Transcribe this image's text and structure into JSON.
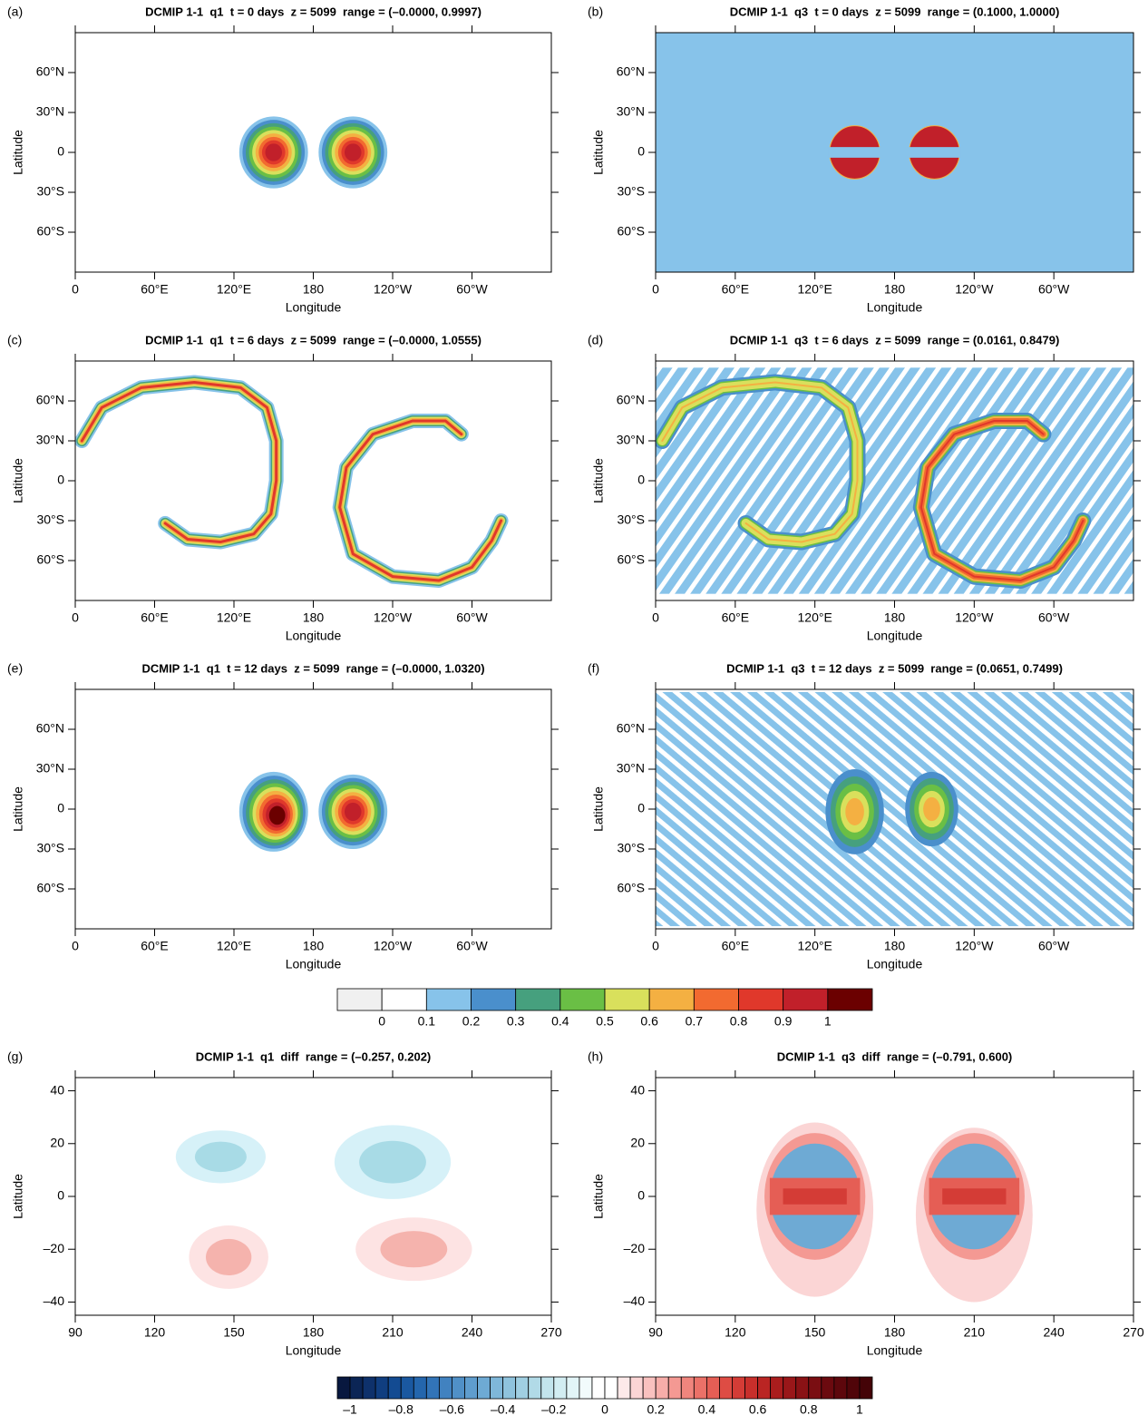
{
  "chart_data": [
    {
      "type": "contour",
      "panel_label": "(a)",
      "title": "DCMIP 1-1  q1  t = 0 days  z = 5099  range = (–0.0000, 0.9997)",
      "xlabel": "Longitude",
      "ylabel": "Latitude",
      "xlim": [
        0,
        360
      ],
      "ylim": [
        -90,
        90
      ],
      "xticks": [
        0,
        {
          "value": 60,
          "label": "60°E"
        },
        {
          "value": 120,
          "label": "120°E"
        },
        180,
        {
          "value": 240,
          "label": "120°W"
        },
        {
          "value": 300,
          "label": "60°W"
        }
      ],
      "yticks": [
        {
          "value": -60,
          "label": "60°S"
        },
        {
          "value": -30,
          "label": "30°S"
        },
        0,
        {
          "value": 30,
          "label": "30°N"
        },
        {
          "value": 60,
          "label": "60°N"
        }
      ]
    },
    {
      "type": "contour",
      "panel_label": "(b)",
      "title": "DCMIP 1-1  q3  t = 0 days  z = 5099  range = (0.1000, 1.0000)",
      "xlabel": "Longitude",
      "ylabel": "Latitude",
      "xlim": [
        0,
        360
      ],
      "ylim": [
        -90,
        90
      ],
      "xticks": [
        0,
        {
          "value": 60,
          "label": "60°E"
        },
        {
          "value": 120,
          "label": "120°E"
        },
        180,
        {
          "value": 240,
          "label": "120°W"
        },
        {
          "value": 300,
          "label": "60°W"
        }
      ],
      "yticks": [
        {
          "value": -60,
          "label": "60°S"
        },
        {
          "value": -30,
          "label": "30°S"
        },
        0,
        {
          "value": 30,
          "label": "30°N"
        },
        {
          "value": 60,
          "label": "60°N"
        }
      ]
    },
    {
      "type": "contour",
      "panel_label": "(c)",
      "title": "DCMIP 1-1  q1  t = 6 days  z = 5099  range = (–0.0000, 1.0555)",
      "xlabel": "Longitude",
      "ylabel": "Latitude",
      "xlim": [
        0,
        360
      ],
      "ylim": [
        -90,
        90
      ],
      "xticks": [
        0,
        {
          "value": 60,
          "label": "60°E"
        },
        {
          "value": 120,
          "label": "120°E"
        },
        180,
        {
          "value": 240,
          "label": "120°W"
        },
        {
          "value": 300,
          "label": "60°W"
        }
      ],
      "yticks": [
        {
          "value": -60,
          "label": "60°S"
        },
        {
          "value": -30,
          "label": "30°S"
        },
        0,
        {
          "value": 30,
          "label": "30°N"
        },
        {
          "value": 60,
          "label": "60°N"
        }
      ]
    },
    {
      "type": "contour",
      "panel_label": "(d)",
      "title": "DCMIP 1-1  q3  t = 6 days  z = 5099  range = (0.0161, 0.8479)",
      "xlabel": "Longitude",
      "ylabel": "Latitude",
      "xlim": [
        0,
        360
      ],
      "ylim": [
        -90,
        90
      ],
      "xticks": [
        0,
        {
          "value": 60,
          "label": "60°E"
        },
        {
          "value": 120,
          "label": "120°E"
        },
        180,
        {
          "value": 240,
          "label": "120°W"
        },
        {
          "value": 300,
          "label": "60°W"
        }
      ],
      "yticks": [
        {
          "value": -60,
          "label": "60°S"
        },
        {
          "value": -30,
          "label": "30°S"
        },
        0,
        {
          "value": 30,
          "label": "30°N"
        },
        {
          "value": 60,
          "label": "60°N"
        }
      ]
    },
    {
      "type": "contour",
      "panel_label": "(e)",
      "title": "DCMIP 1-1  q1  t = 12 days  z = 5099  range = (–0.0000, 1.0320)",
      "xlabel": "Longitude",
      "ylabel": "Latitude",
      "xlim": [
        0,
        360
      ],
      "ylim": [
        -90,
        90
      ],
      "xticks": [
        0,
        {
          "value": 60,
          "label": "60°E"
        },
        {
          "value": 120,
          "label": "120°E"
        },
        180,
        {
          "value": 240,
          "label": "120°W"
        },
        {
          "value": 300,
          "label": "60°W"
        }
      ],
      "yticks": [
        {
          "value": -60,
          "label": "60°S"
        },
        {
          "value": -30,
          "label": "30°S"
        },
        0,
        {
          "value": 30,
          "label": "30°N"
        },
        {
          "value": 60,
          "label": "60°N"
        }
      ]
    },
    {
      "type": "contour",
      "panel_label": "(f)",
      "title": "DCMIP 1-1  q3  t = 12 days  z = 5099  range = (0.0651, 0.7499)",
      "xlabel": "Longitude",
      "ylabel": "Latitude",
      "xlim": [
        0,
        360
      ],
      "ylim": [
        -90,
        90
      ],
      "xticks": [
        0,
        {
          "value": 60,
          "label": "60°E"
        },
        {
          "value": 120,
          "label": "120°E"
        },
        180,
        {
          "value": 240,
          "label": "120°W"
        },
        {
          "value": 300,
          "label": "60°W"
        }
      ],
      "yticks": [
        {
          "value": -60,
          "label": "60°S"
        },
        {
          "value": -30,
          "label": "30°S"
        },
        0,
        {
          "value": 30,
          "label": "30°N"
        },
        {
          "value": 60,
          "label": "60°N"
        }
      ]
    },
    {
      "type": "colorbar",
      "lim": [
        -0.1,
        1.1
      ],
      "colors": [
        "#f0f0f0",
        "#ffffff",
        "#87c3ea",
        "#4a8fcc",
        "#46a07e",
        "#6abf45",
        "#d9e05c",
        "#f4b042",
        "#f26a30",
        "#e0382b",
        "#c1202a",
        "#6b0000"
      ],
      "ticks": [
        0,
        0.1,
        0.2,
        0.3,
        0.4,
        0.5,
        0.6,
        0.7,
        0.8,
        0.9,
        1
      ]
    },
    {
      "type": "contour",
      "panel_label": "(g)",
      "title": "DCMIP 1-1  q1  diff  range = (–0.257, 0.202)",
      "xlabel": "Longitude",
      "ylabel": "Latitude",
      "xlim": [
        90,
        270
      ],
      "ylim": [
        -45,
        45
      ],
      "xticks": [
        90,
        120,
        150,
        180,
        210,
        240,
        270
      ],
      "yticks": [
        {
          "value": -40,
          "label": "–40"
        },
        {
          "value": -20,
          "label": "–20"
        },
        0,
        20,
        40
      ]
    },
    {
      "type": "contour",
      "panel_label": "(h)",
      "title": "DCMIP 1-1  q3  diff  range = (–0.791, 0.600)",
      "xlabel": "Longitude",
      "ylabel": "Latitude",
      "xlim": [
        90,
        270
      ],
      "ylim": [
        -45,
        45
      ],
      "xticks": [
        90,
        120,
        150,
        180,
        210,
        240,
        270
      ],
      "yticks": [
        {
          "value": -40,
          "label": "–40"
        },
        {
          "value": -20,
          "label": "–20"
        },
        0,
        20,
        40
      ]
    },
    {
      "type": "colorbar",
      "lim": [
        -1.05,
        1.05
      ],
      "colors": [
        "#08183f",
        "#0b2555",
        "#0e316b",
        "#103e80",
        "#134b92",
        "#1a58a0",
        "#2466ad",
        "#3274b8",
        "#4182c0",
        "#5090c7",
        "#5f9dce",
        "#6eaad4",
        "#7fb7d9",
        "#8fc3dd",
        "#a0cfe2",
        "#b1dae7",
        "#c2e4ec",
        "#d2edf2",
        "#e2f5f8",
        "#f2fbfc",
        "#ffffff",
        "#ffffff",
        "#fde9e9",
        "#fbd5d5",
        "#f9c1bf",
        "#f7ada9",
        "#f49993",
        "#f0857d",
        "#eb7168",
        "#e55e55",
        "#de4c44",
        "#d43c36",
        "#c82f2b",
        "#ba2523",
        "#aa1d1d",
        "#9a1719",
        "#8a1215",
        "#7a0e12",
        "#6b0a0f",
        "#5d070c",
        "#500509",
        "#440307"
      ],
      "ticks": [
        {
          "value": -1,
          "label": "–1"
        },
        {
          "value": -0.8,
          "label": "–0.8"
        },
        {
          "value": -0.6,
          "label": "–0.6"
        },
        {
          "value": -0.4,
          "label": "–0.4"
        },
        {
          "value": -0.2,
          "label": "–0.2"
        },
        0,
        0.2,
        0.4,
        0.6,
        0.8,
        1
      ]
    }
  ]
}
